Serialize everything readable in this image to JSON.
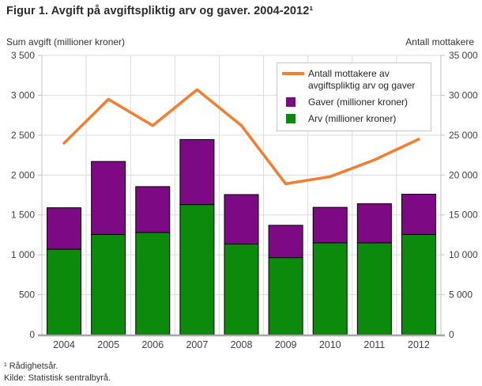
{
  "figure": {
    "title": "Figur 1. Avgift på avgiftspliktig arv og gaver. 2004-2012¹",
    "footnotes": [
      "¹ Rådighetsår.",
      "Kilde: Statistisk sentralbyrå."
    ]
  },
  "colors": {
    "arv_green": "#0b8a0b",
    "gaver_purple": "#7d0a84",
    "recipients_orange": "#f77d2e",
    "grid": "#dcdcdc",
    "axis_edge": "#c3c3c3",
    "axis_bottom": "#a6a6a6",
    "bar_border": "#000000",
    "tick_text": "#404040"
  },
  "chart_data": {
    "type": "stacked_bar_with_line",
    "title": "Figur 1. Avgift på avgiftspliktig arv og gaver. 2004-2012¹",
    "categories": [
      "2004",
      "2005",
      "2006",
      "2007",
      "2008",
      "2009",
      "2010",
      "2011",
      "2012"
    ],
    "left_axis": {
      "label": "Sum avgift (millioner kroner)",
      "min": 0,
      "max": 3500,
      "step": 500
    },
    "right_axis": {
      "label": "Antall mottakere",
      "min": 0,
      "max": 35000,
      "step": 5000
    },
    "bar_series": [
      {
        "name": "Arv (millioner kroner)",
        "color": "#0b8a0b",
        "stack": "bottom",
        "values": [
          1070,
          1255,
          1280,
          1630,
          1135,
          965,
          1150,
          1150,
          1255
        ]
      },
      {
        "name": "Gaver (millioner kroner)",
        "color": "#7d0a84",
        "stack": "top",
        "values": [
          520,
          915,
          575,
          815,
          620,
          405,
          445,
          490,
          505
        ]
      }
    ],
    "bar_totals": [
      1590,
      2170,
      1855,
      2445,
      1755,
      1370,
      1595,
      1640,
      1760
    ],
    "line_series": {
      "name": "Antall mottakere av avgiftspliktig arv og gaver",
      "color": "#f77d2e",
      "axis": "right",
      "values": [
        24000,
        29500,
        26200,
        30700,
        26200,
        18900,
        19800,
        21900,
        24500
      ]
    },
    "grid": true,
    "legend_position": "top-right-inside"
  }
}
